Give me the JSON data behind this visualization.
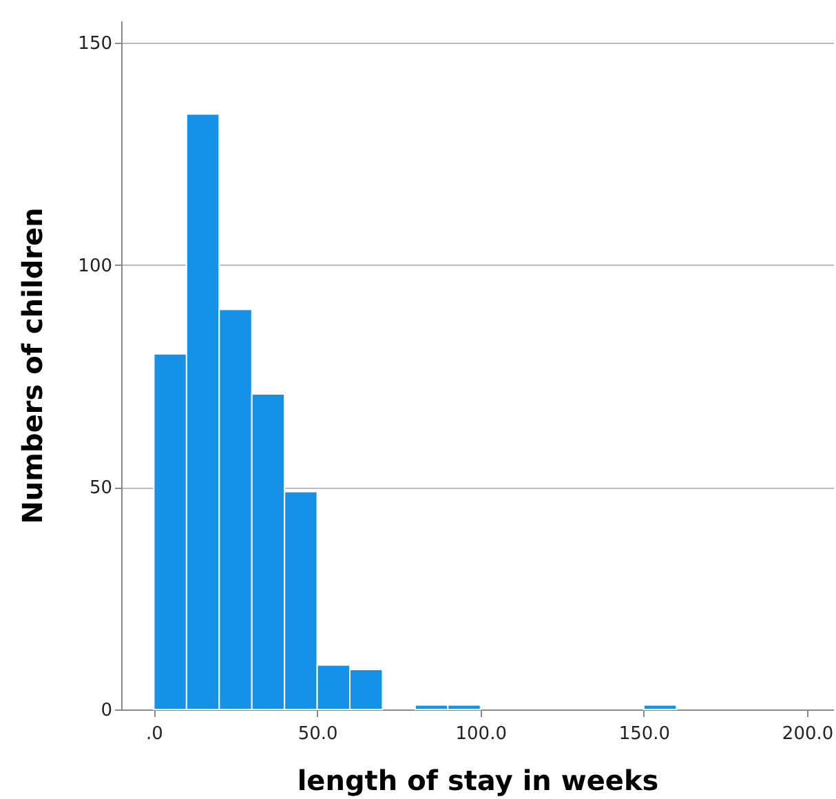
{
  "chart_data": {
    "type": "histogram",
    "xlabel": "length of stay in weeks",
    "ylabel": "Numbers of children",
    "bins": [
      0,
      10,
      20,
      30,
      40,
      50,
      60,
      70,
      80,
      90,
      100,
      110,
      120,
      130,
      140,
      150,
      160
    ],
    "values": [
      80,
      134,
      90,
      71,
      49,
      10,
      9,
      0,
      1,
      1,
      0,
      0,
      0,
      0,
      0,
      1
    ],
    "color": "#1591e8",
    "xlim": [
      -10,
      208
    ],
    "xticks": [
      {
        "value": 0,
        "label": ".0"
      },
      {
        "value": 50,
        "label": "50.0"
      },
      {
        "value": 100,
        "label": "100.0"
      },
      {
        "value": 150,
        "label": "150.0"
      },
      {
        "value": 200,
        "label": "200.0"
      }
    ],
    "ylim": [
      0,
      155
    ],
    "yticks": [
      0,
      50,
      100,
      150
    ],
    "grid": "y"
  }
}
